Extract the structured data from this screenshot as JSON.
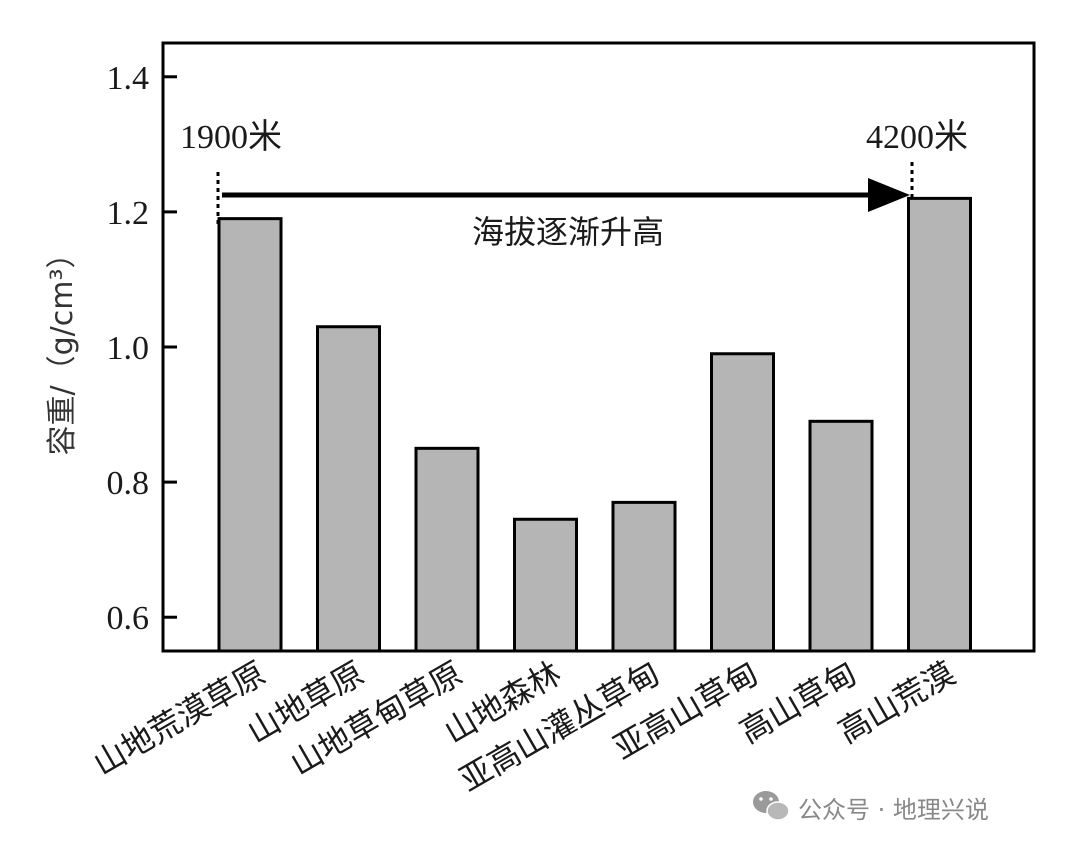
{
  "chart_data": {
    "type": "bar",
    "categories": [
      "山地荒漠草原",
      "山地草原",
      "山地草甸草原",
      "山地森林",
      "亚高山灌丛草甸",
      "亚高山草甸",
      "高山草甸",
      "高山荒漠"
    ],
    "values": [
      1.19,
      1.03,
      0.85,
      0.745,
      0.77,
      0.99,
      0.89,
      1.22
    ],
    "ylabel": "容重/（g/cm³）",
    "xlabel": "",
    "ylim": [
      0.55,
      1.45
    ],
    "yticks": [
      "0.6",
      "0.8",
      "1.0",
      "1.2",
      "1.4"
    ],
    "grid": false,
    "bar_color": "#b5b5b5",
    "annotations": {
      "start_label": "1900米",
      "end_label": "4200米",
      "arrow_label": "海拔逐渐升高"
    }
  },
  "watermark": {
    "text": "公众号 · 地理兴说",
    "icon": "wechat-icon"
  }
}
